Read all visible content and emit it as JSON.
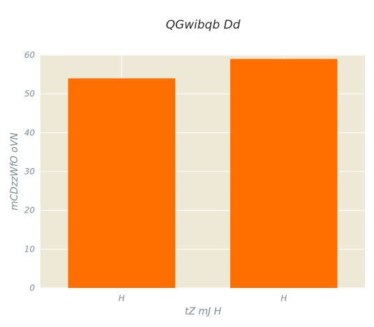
{
  "chart_data": {
    "type": "bar",
    "title": "QGwibqb Dd",
    "xlabel": "tZ mJ H",
    "ylabel": "mCDzzWfO  oVN",
    "categories": [
      "H",
      "H"
    ],
    "values": [
      54,
      59
    ],
    "ylim": [
      0,
      60
    ],
    "yticks": [
      0,
      10,
      20,
      30,
      40,
      50,
      60
    ],
    "grid": true,
    "colors": {
      "bar": "#ff6f00",
      "plot_background": "#eee8d6",
      "grid": "#ffffff"
    }
  }
}
